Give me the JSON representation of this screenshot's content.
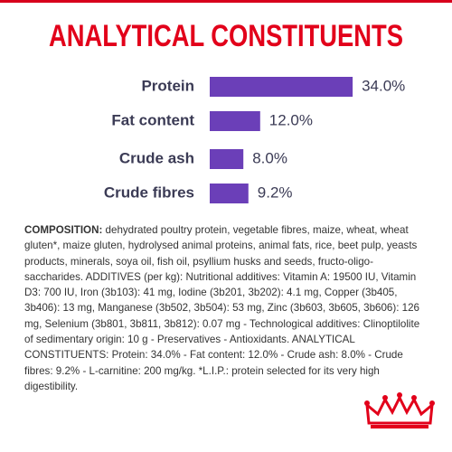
{
  "chart_data": {
    "type": "hbar",
    "title": "ANALYTICAL CONSTITUENTS",
    "categories": [
      "Protein",
      "Fat content",
      "Crude ash",
      "Crude fibres"
    ],
    "values": [
      34.0,
      12.0,
      8.0,
      9.2
    ],
    "value_labels": [
      "34.0%",
      "12.0%",
      "8.0%",
      "9.2%"
    ],
    "color": "#6b3fb8"
  },
  "composition": {
    "label": "COMPOSITION:",
    "text": "dehydrated poultry protein, vegetable fibres, maize, wheat, wheat gluten*, maize gluten, hydrolysed animal proteins, animal fats, rice, beet pulp, yeasts products, minerals, soya oil, fish oil, psyllium husks and seeds, fructo-oligo-saccharides. ADDITIVES (per kg): Nutritional additives: Vitamin A: 19500 IU, Vitamin D3: 700 IU, Iron (3b103): 41 mg, Iodine (3b201, 3b202): 4.1 mg, Copper (3b405, 3b406): 13 mg, Manganese (3b502, 3b504): 53 mg, Zinc (3b603, 3b605, 3b606): 126 mg, Selenium (3b801, 3b811, 3b812): 0.07 mg - Technological additives: Clinoptilolite of sedimentary origin: 10 g - Preservatives - Antioxidants. ANALYTICAL CONSTITUENTS: Protein: 34.0% - Fat content: 12.0% - Crude ash: 8.0% - Crude fibres: 9.2% - L-carnitine: 200 mg/kg. *L.I.P.: protein selected for its very high digestibility."
  }
}
